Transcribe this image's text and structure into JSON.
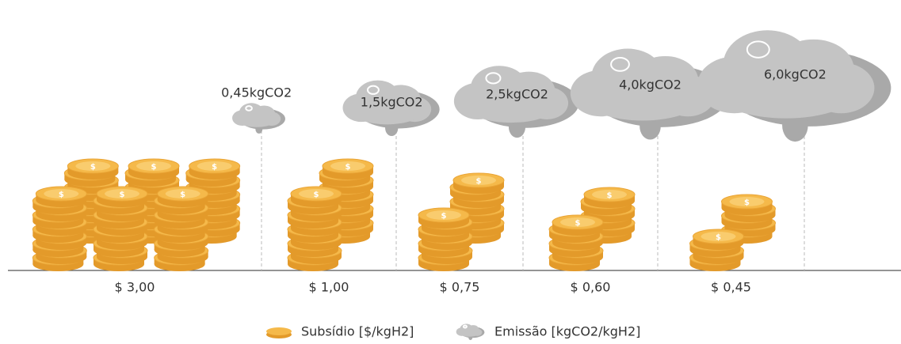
{
  "chart_data": {
    "type": "pictogram",
    "series": [
      {
        "name": "Subsídio [$/kgH2]",
        "color": "#f5b94a",
        "values": [
          3.0,
          1.0,
          0.75,
          0.6,
          0.45
        ],
        "value_labels": [
          "$ 3,00",
          "$ 1,00",
          "$ 0,75",
          "$ 0,60",
          "$ 0,45"
        ]
      },
      {
        "name": "Emissão [kgCO2/kgH2]",
        "color": "#c4c4c4",
        "values": [
          0.45,
          1.5,
          2.5,
          4.0,
          6.0
        ],
        "value_labels": [
          "0,45kgCO2",
          "1,5kgCO2",
          "2,5kgCO2",
          "4,0kgCO2",
          "6,0kgCO2"
        ]
      }
    ]
  }
}
